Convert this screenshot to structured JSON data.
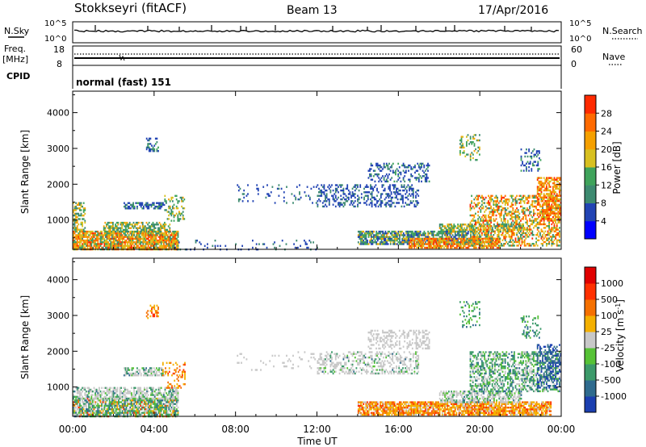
{
  "header": {
    "station": "Stokkseyri (fitACF)",
    "beam": "Beam 13",
    "date": "17/Apr/2016"
  },
  "top_panels": {
    "nsky_label": "N.Sky",
    "nsky_ticks": [
      "10^5",
      "10^0"
    ],
    "nsearch_label": "N.Search",
    "nsearch_ticks": [
      "10^5",
      "10^0"
    ],
    "freq_label_1": "Freq.",
    "freq_label_2": "[MHz]",
    "freq_ticks": [
      "18",
      "8"
    ],
    "nave_label": "Nave",
    "nave_ticks": [
      "60",
      "0"
    ],
    "cpid_label": "CPID",
    "cpid_value": "normal (fast) 151"
  },
  "chart_data": [
    {
      "type": "heatmap",
      "name": "power",
      "ylabel": "Slant Range [km]",
      "ylim": [
        180,
        4600
      ],
      "y_ticks": [
        1000,
        2000,
        3000,
        4000
      ],
      "x_ticks": [
        "00:00",
        "04:00",
        "08:00",
        "12:00",
        "16:00",
        "20:00",
        "00:00"
      ],
      "xlim_hours": [
        0,
        24
      ],
      "colorbar": {
        "label": "Power [dB]",
        "ticks": [
          "4",
          "8",
          "12",
          "16",
          "20",
          "24",
          "28"
        ],
        "colors": [
          "#0000ff",
          "#2244b4",
          "#3d8a70",
          "#3fa35b",
          "#d8c020",
          "#f5a000",
          "#ff6a00",
          "#ff2a00"
        ]
      }
    },
    {
      "type": "heatmap",
      "name": "velocity",
      "ylabel": "Slant Range [km]",
      "ylim": [
        180,
        4600
      ],
      "y_ticks": [
        1000,
        2000,
        3000,
        4000
      ],
      "x_ticks": [
        "00:00",
        "04:00",
        "08:00",
        "12:00",
        "16:00",
        "20:00",
        "00:00"
      ],
      "xlim_hours": [
        0,
        24
      ],
      "xlabel": "Time UT",
      "colorbar": {
        "label": "Velocity [m s^-1]",
        "ticks": [
          "1000",
          "500",
          "100",
          "25",
          "-25",
          "-100",
          "-500",
          "-1000"
        ],
        "colors": [
          "#1b3fb0",
          "#2f6b8e",
          "#3c9a6a",
          "#56c236",
          "#c8c8c8",
          "#f4b000",
          "#f57000",
          "#ff3000",
          "#e00000"
        ]
      }
    }
  ]
}
